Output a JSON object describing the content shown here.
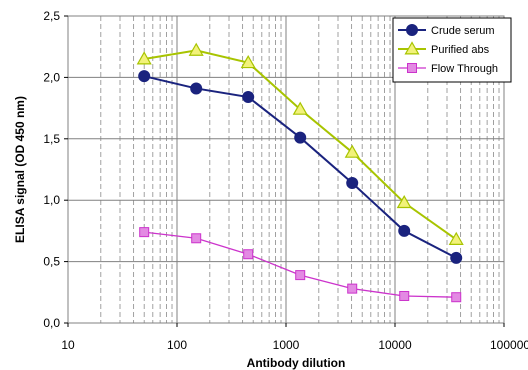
{
  "chart_data": {
    "type": "line",
    "title": "",
    "xlabel": "Antibody dilution",
    "ylabel": "ELISA signal (OD 450 nm)",
    "x_scale": "log",
    "xlim": [
      10,
      100000
    ],
    "ylim": [
      0,
      2.5
    ],
    "x_ticks": [
      10,
      100,
      1000,
      10000,
      100000
    ],
    "x_tick_labels": [
      "10",
      "100",
      "1000",
      "10000",
      "100000"
    ],
    "y_ticks": [
      0,
      0.5,
      1.0,
      1.5,
      2.0,
      2.5
    ],
    "y_tick_labels": [
      "0,0",
      "0,5",
      "1,0",
      "1,5",
      "2,0",
      "2,5"
    ],
    "grid": true,
    "legend_position": "top-right",
    "x": [
      50,
      150,
      450,
      1350,
      4050,
      12150,
      36450
    ],
    "series": [
      {
        "name": "Crude serum",
        "color": "#1a237e",
        "marker": "circle",
        "values": [
          2.01,
          1.91,
          1.84,
          1.51,
          1.14,
          0.75,
          0.53
        ]
      },
      {
        "name": "Purified abs",
        "color": "#a8c400",
        "marker_fill": "#f2f27a",
        "marker": "triangle",
        "values": [
          2.15,
          2.22,
          2.12,
          1.74,
          1.39,
          0.98,
          0.68
        ]
      },
      {
        "name": "Flow  Through",
        "color": "#cc33cc",
        "marker_fill": "#e38ae3",
        "marker": "square",
        "values": [
          0.74,
          0.69,
          0.56,
          0.39,
          0.28,
          0.22,
          0.21
        ]
      }
    ]
  }
}
